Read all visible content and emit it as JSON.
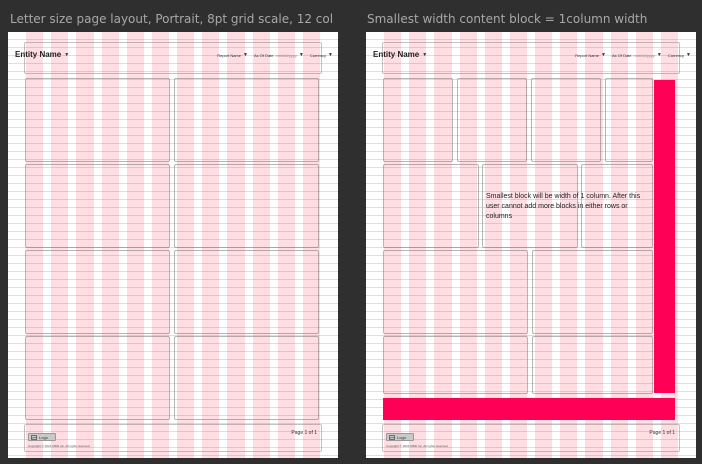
{
  "frames": [
    {
      "title": "Letter size page layout, Portrait, 8pt grid scale, 12 col",
      "header": {
        "entity_name": "Entity Name",
        "controls": [
          {
            "label": "Report Name",
            "placeholder": ""
          },
          {
            "label": "As Of Date",
            "placeholder": "mm/dd/yyyy"
          },
          {
            "label": "Currency",
            "placeholder": ""
          }
        ]
      },
      "footer": {
        "page_label": "Page 1 of 1",
        "logo_label": "Logo",
        "copyright": "Copyright © 2024 MDD Inc. All rights reserved."
      }
    },
    {
      "title": "Smallest width content block = 1column width",
      "header": {
        "entity_name": "Entity Name",
        "controls": [
          {
            "label": "Report Name",
            "placeholder": ""
          },
          {
            "label": "As Of Date",
            "placeholder": "mm/dd/yyyy"
          },
          {
            "label": "Currency",
            "placeholder": ""
          }
        ]
      },
      "note": "Smallest block will be width of 1 column. After this user cannot add more blocks in either rows or columns",
      "footer": {
        "page_label": "Page 1 of 1",
        "logo_label": "Logo",
        "copyright": "Copyright © 2024 MDD Inc. All rights reserved."
      }
    }
  ],
  "colors": {
    "background": "#2f2f2f",
    "grid_column": "#ffdde2",
    "accent": "#ff0057"
  },
  "icons": {
    "logo": "image-placeholder-icon",
    "dropdown": "chevron-down-icon"
  }
}
